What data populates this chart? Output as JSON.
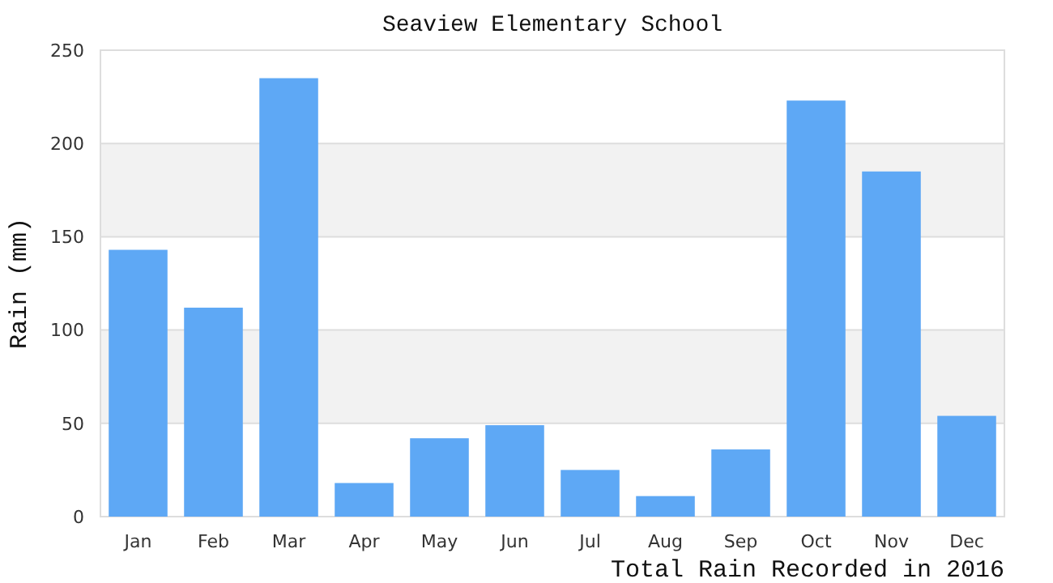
{
  "chart_data": {
    "type": "bar",
    "title": "Seaview Elementary School",
    "ylabel": "Rain (mm)",
    "annotations": [
      "Total Rain Recorded in 2016"
    ],
    "categories": [
      "Jan",
      "Feb",
      "Mar",
      "Apr",
      "May",
      "Jun",
      "Jul",
      "Aug",
      "Sep",
      "Oct",
      "Nov",
      "Dec"
    ],
    "values": [
      143,
      112,
      235,
      18,
      42,
      49,
      25,
      11,
      36,
      223,
      185,
      54
    ],
    "color": "#5ea8f5",
    "ylim": [
      0,
      250
    ],
    "yticks": [
      0,
      50,
      100,
      150,
      200,
      250
    ],
    "grid": "y"
  }
}
